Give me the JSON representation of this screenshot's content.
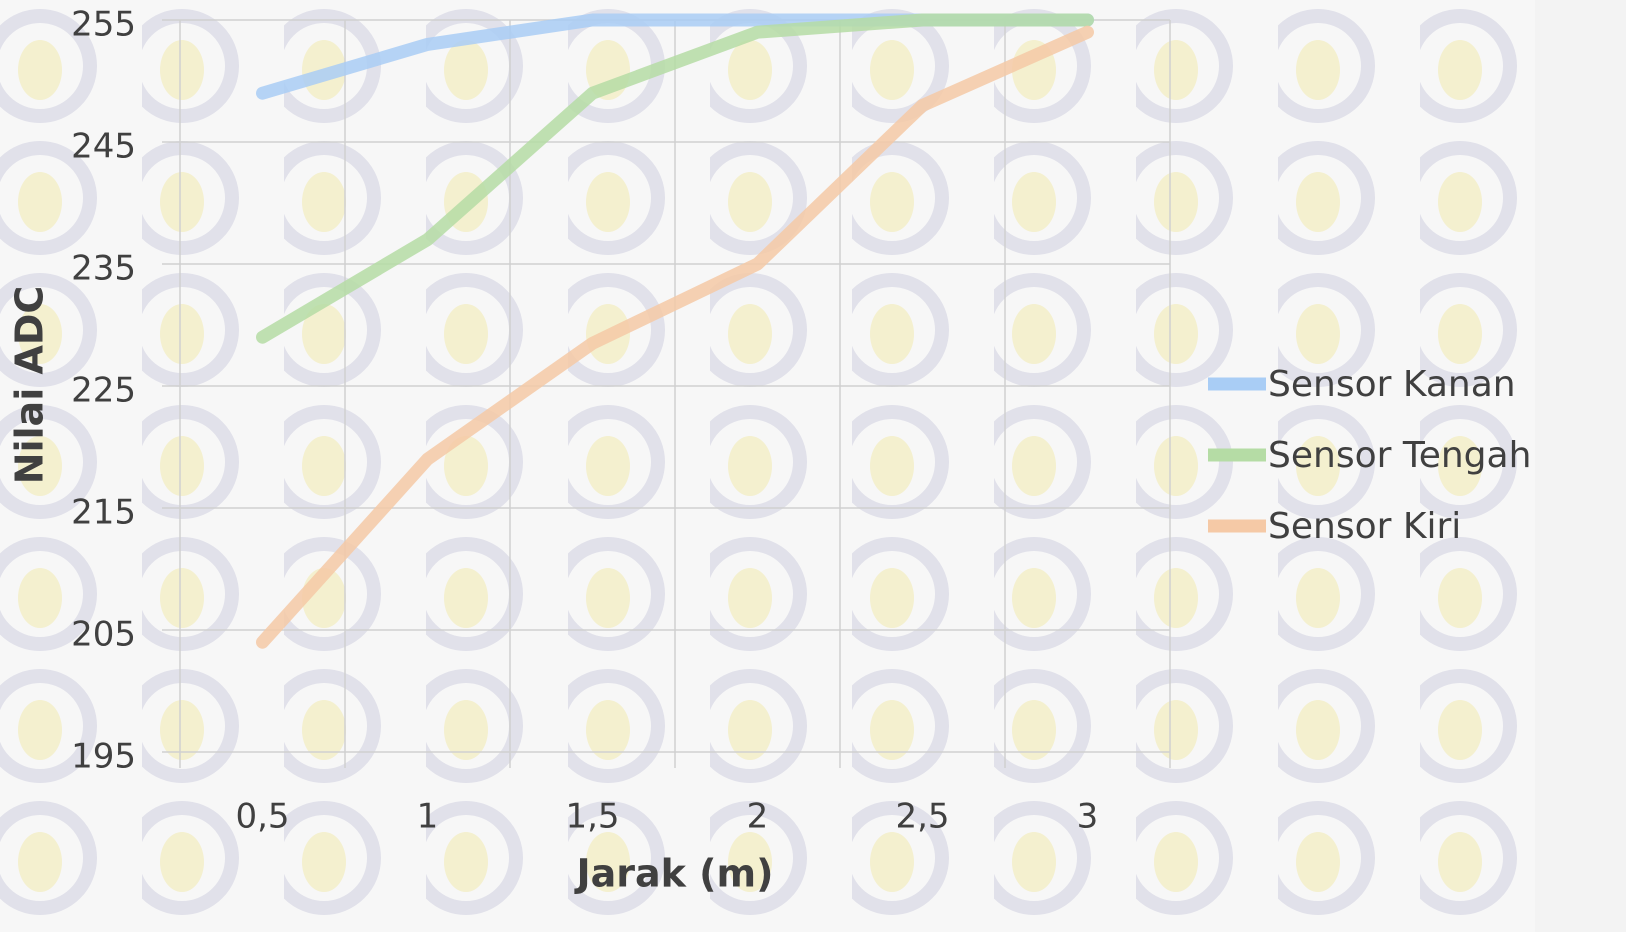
{
  "chart_data": {
    "type": "line",
    "x_label": "Jarak (m)",
    "y_label": "Nilai ADC",
    "categories": [
      "0,5",
      "1",
      "1,5",
      "2",
      "2,5",
      "3"
    ],
    "series": [
      {
        "name": "Sensor Kanan",
        "color": "#a9cdf5",
        "values": [
          249,
          253,
          255,
          255,
          255,
          255
        ]
      },
      {
        "name": "Sensor Tengah",
        "color": "#b5dca5",
        "values": [
          229,
          237,
          249,
          254,
          255,
          255
        ]
      },
      {
        "name": "Sensor Kiri",
        "color": "#f5c9a6",
        "values": [
          204,
          219,
          228.5,
          235,
          248,
          254
        ]
      }
    ],
    "ylim": [
      195,
      255
    ],
    "yticks": [
      195,
      205,
      215,
      225,
      235,
      245,
      255
    ],
    "grid": true,
    "legend": "right"
  }
}
